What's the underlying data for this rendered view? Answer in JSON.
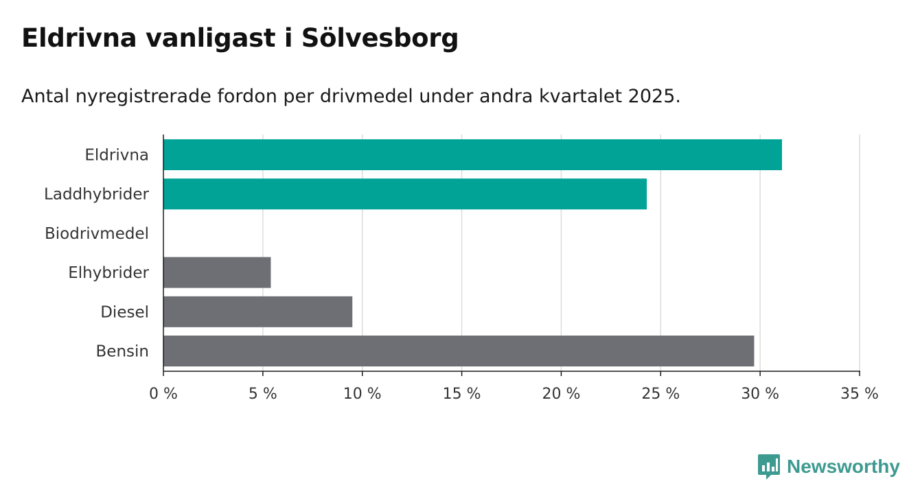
{
  "chart_data": {
    "type": "bar",
    "orientation": "horizontal",
    "title": "Eldrivna vanligast i Sölvesborg",
    "subtitle": "Antal nyregistrerade fordon per drivmedel under andra kvartalet 2025.",
    "categories": [
      "Eldrivna",
      "Laddhybrider",
      "Biodrivmedel",
      "Elhybrider",
      "Diesel",
      "Bensin"
    ],
    "values": [
      31.1,
      24.3,
      0,
      5.4,
      9.5,
      29.7
    ],
    "bar_colors": [
      "#00a396",
      "#00a396",
      "#6e6e75",
      "#6e6e75",
      "#6e6e75",
      "#6e6e75"
    ],
    "xlim": [
      0,
      35
    ],
    "xticks": [
      0,
      5,
      10,
      15,
      20,
      25,
      30,
      35
    ],
    "xtick_labels": [
      "0 %",
      "5 %",
      "10 %",
      "15 %",
      "20 %",
      "25 %",
      "30 %",
      "35 %"
    ],
    "xlabel": "",
    "ylabel": "",
    "grid": true
  },
  "brand": {
    "name": "Newsworthy",
    "color": "#3d9a90",
    "icon": "bar-chart-speech-bubble-icon"
  }
}
